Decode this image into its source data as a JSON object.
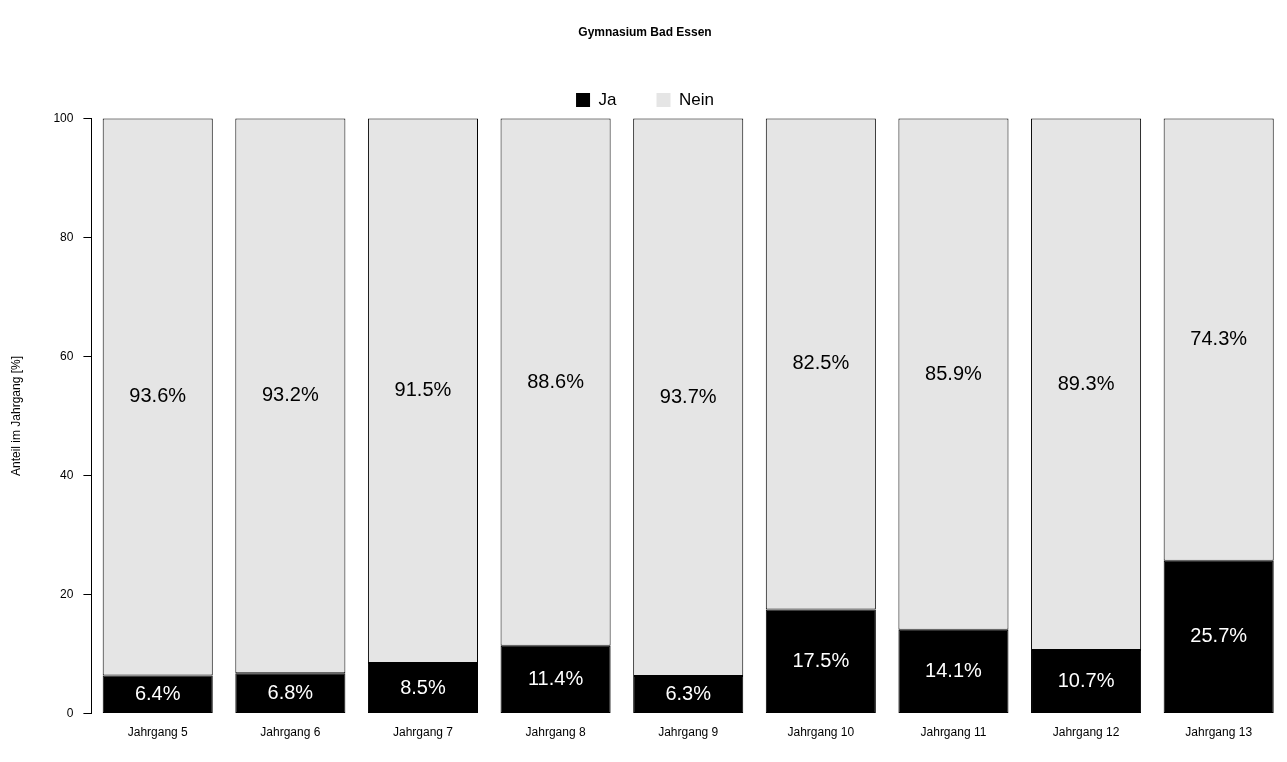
{
  "chart_data": {
    "type": "bar",
    "title": "Gymnasium Bad Essen",
    "ylabel": "Anteil im Jahrgang [%]",
    "stacked": true,
    "legend": "top",
    "grid": false,
    "categories": [
      "Jahrgang 5",
      "Jahrgang 6",
      "Jahrgang 7",
      "Jahrgang 8",
      "Jahrgang 9",
      "Jahrgang 10",
      "Jahrgang 11",
      "Jahrgang 12",
      "Jahrgang 13"
    ],
    "ylim": [
      0,
      100
    ],
    "yticks": [
      0,
      20,
      40,
      60,
      80,
      100
    ],
    "series": [
      {
        "name": "Ja",
        "color": "#000000",
        "values": [
          6.4,
          6.8,
          8.5,
          11.4,
          6.3,
          17.5,
          14.1,
          10.7,
          25.7
        ],
        "value_labels": [
          "6.4%",
          "6.8%",
          "8.5%",
          "11.4%",
          "6.3%",
          "17.5%",
          "14.1%",
          "10.7%",
          "25.7%"
        ]
      },
      {
        "name": "Nein",
        "color": "#e5e5e5",
        "values": [
          93.6,
          93.2,
          91.5,
          88.6,
          93.7,
          82.5,
          85.9,
          89.3,
          74.3
        ],
        "value_labels": [
          "93.6%",
          "93.2%",
          "91.5%",
          "88.6%",
          "93.7%",
          "82.5%",
          "85.9%",
          "89.3%",
          "74.3%"
        ]
      }
    ]
  }
}
